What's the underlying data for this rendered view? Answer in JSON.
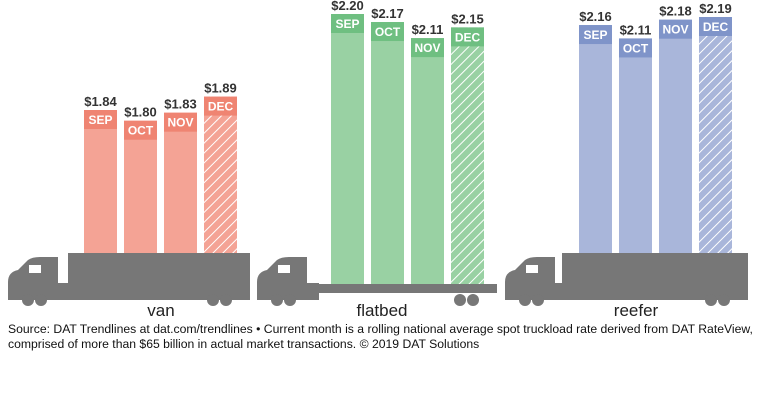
{
  "chart_data": {
    "type": "bar",
    "categories": [
      "SEP",
      "OCT",
      "NOV",
      "DEC"
    ],
    "series": [
      {
        "name": "van",
        "values": [
          1.84,
          1.8,
          1.83,
          1.89
        ],
        "value_labels": [
          "$1.84",
          "$1.80",
          "$1.83",
          "$1.89"
        ],
        "header_color": "#ef8472",
        "bar_color": "#f4a395"
      },
      {
        "name": "flatbed",
        "values": [
          2.2,
          2.17,
          2.11,
          2.15
        ],
        "value_labels": [
          "$2.20",
          "$2.17",
          "$2.11",
          "$2.15"
        ],
        "header_color": "#6fbf81",
        "bar_color": "#99d1a3"
      },
      {
        "name": "reefer",
        "values": [
          2.16,
          2.11,
          2.18,
          2.19
        ],
        "value_labels": [
          "$2.16",
          "$2.11",
          "$2.18",
          "$2.19"
        ],
        "header_color": "#7f94c9",
        "bar_color": "#a9b6da"
      }
    ],
    "hatched_category": "DEC",
    "truck_color": "#777777"
  },
  "source": "Source: DAT Trendlines at dat.com/trendlines • Current month is a rolling national average spot truckload rate derived from DAT RateView, comprised of more than $65 billion in actual market transactions. © 2019 DAT Solutions"
}
